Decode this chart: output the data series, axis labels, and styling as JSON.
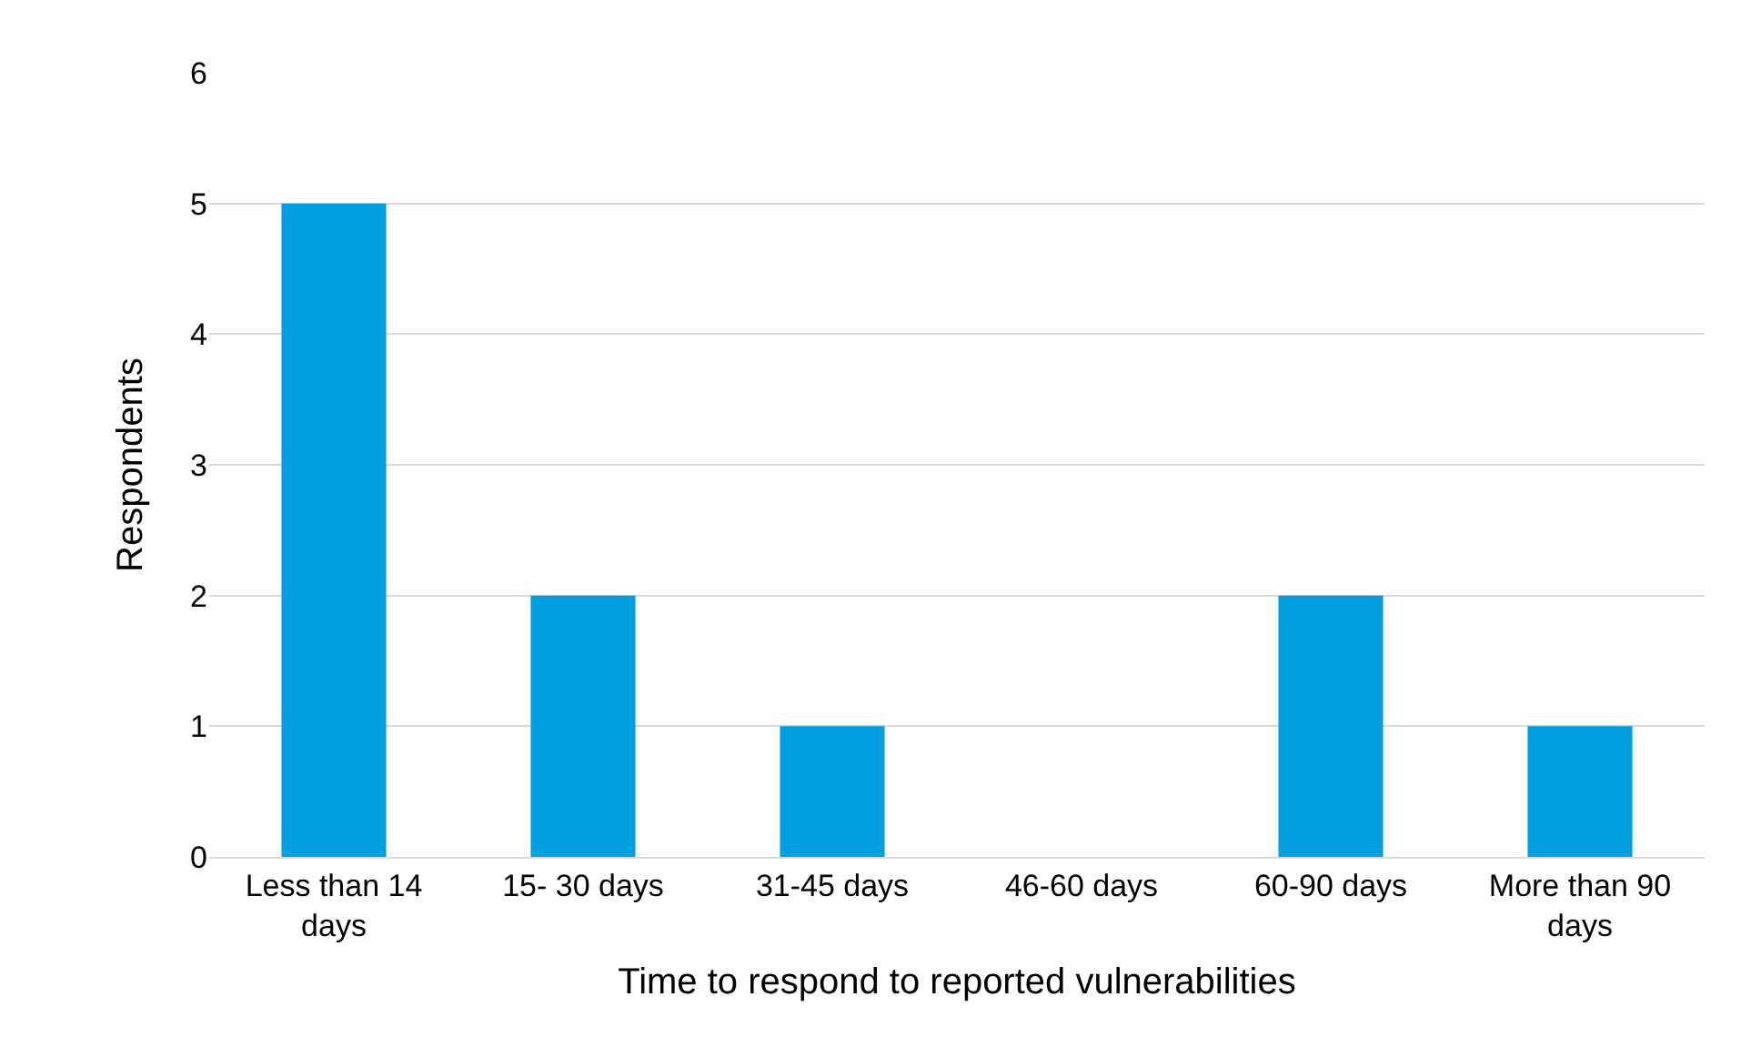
{
  "chart_data": {
    "type": "bar",
    "categories": [
      "Less than 14 days",
      "15- 30 days",
      "31-45 days",
      "46-60 days",
      "60-90 days",
      "More than 90 days"
    ],
    "values": [
      5,
      2,
      1,
      0,
      2,
      1
    ],
    "color": "#009fdf",
    "xlabel": "Time to respond to reported vulnerabilities",
    "ylabel": "Respondents",
    "ylim": [
      0,
      6
    ],
    "yticks": [
      0,
      1,
      2,
      3,
      4,
      5,
      6
    ],
    "grid": "y"
  }
}
